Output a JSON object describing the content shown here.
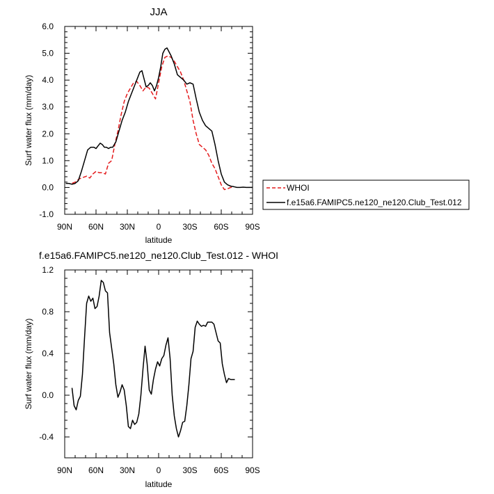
{
  "chart_data": [
    {
      "type": "line",
      "title": "JJA",
      "xlabel": "latitude",
      "ylabel": "Surf water flux (mm/day)",
      "xlim": [
        90,
        -90
      ],
      "ylim": [
        -1.0,
        6.0
      ],
      "x_ticks": [
        90,
        60,
        30,
        0,
        -30,
        -60,
        -90
      ],
      "x_tick_labels": [
        "90N",
        "60N",
        "30N",
        "0",
        "30S",
        "60S",
        "90S"
      ],
      "y_ticks": [
        -1.0,
        0.0,
        1.0,
        2.0,
        3.0,
        4.0,
        5.0,
        6.0
      ],
      "y_tick_labels": [
        "-1.0",
        "0.0",
        "1.0",
        "2.0",
        "3.0",
        "4.0",
        "5.0",
        "6.0"
      ],
      "grid": false,
      "legend_position": "right-outside",
      "series": [
        {
          "name": "WHOI",
          "color": "#e41a1c",
          "dash": "dashed",
          "x": [
            83,
            80,
            76,
            72,
            69,
            66,
            63,
            60,
            57,
            54,
            51,
            48,
            45,
            42,
            39,
            36,
            33,
            30,
            27,
            24,
            21,
            18,
            15,
            12,
            9,
            6,
            3,
            0,
            -3,
            -6,
            -9,
            -12,
            -15,
            -18,
            -21,
            -24,
            -27,
            -30,
            -33,
            -36,
            -39,
            -42,
            -45,
            -48,
            -51,
            -54,
            -57,
            -60,
            -63,
            -66,
            -69,
            -72
          ],
          "y": [
            0.15,
            0.2,
            0.32,
            0.38,
            0.42,
            0.35,
            0.5,
            0.6,
            0.55,
            0.55,
            0.5,
            0.9,
            1.0,
            1.6,
            2.1,
            2.7,
            3.2,
            3.5,
            3.7,
            3.9,
            3.95,
            3.8,
            3.6,
            3.75,
            3.7,
            3.5,
            3.3,
            3.9,
            4.5,
            4.85,
            4.9,
            4.85,
            4.7,
            4.5,
            4.3,
            4.0,
            3.6,
            3.2,
            2.5,
            2.0,
            1.6,
            1.5,
            1.4,
            1.2,
            0.9,
            0.7,
            0.4,
            0.1,
            -0.08,
            -0.05,
            0.0,
            0.0
          ]
        },
        {
          "name": "f.e15a6.FAMIPC5.ne120_ne120.Club_Test.012",
          "color": "#000000",
          "dash": "solid",
          "x": [
            89,
            86,
            83,
            80,
            77,
            74,
            71,
            68,
            65,
            62,
            60,
            58,
            56,
            54,
            52,
            50,
            48,
            46,
            44,
            41,
            38,
            35,
            32,
            29,
            26,
            23,
            20,
            18,
            16,
            14,
            12,
            10,
            8,
            6,
            4,
            2,
            0,
            -2,
            -4,
            -6,
            -8,
            -10,
            -12,
            -15,
            -18,
            -21,
            -24,
            -27,
            -30,
            -33,
            -36,
            -39,
            -42,
            -45,
            -48,
            -51,
            -54,
            -57,
            -60,
            -63,
            -66,
            -69,
            -72,
            -75,
            -78,
            -81,
            -84,
            -87,
            -90
          ],
          "y": [
            0.15,
            0.15,
            0.12,
            0.15,
            0.25,
            0.6,
            1.0,
            1.4,
            1.5,
            1.5,
            1.45,
            1.55,
            1.65,
            1.6,
            1.5,
            1.5,
            1.45,
            1.5,
            1.5,
            1.7,
            2.1,
            2.5,
            2.8,
            3.2,
            3.5,
            3.8,
            4.1,
            4.3,
            4.35,
            4.05,
            3.75,
            3.8,
            3.9,
            3.8,
            3.6,
            3.8,
            4.1,
            4.5,
            5.0,
            5.15,
            5.2,
            5.05,
            4.9,
            4.6,
            4.2,
            4.1,
            4.0,
            3.85,
            3.9,
            3.85,
            3.3,
            2.8,
            2.5,
            2.3,
            2.2,
            2.1,
            1.6,
            1.0,
            0.5,
            0.2,
            0.1,
            0.05,
            0.03,
            0.0,
            0.0,
            0.01,
            0.0,
            0.0,
            0.0
          ]
        }
      ]
    },
    {
      "type": "line",
      "title": "f.e15a6.FAMIPC5.ne120_ne120.Club_Test.012 - WHOI",
      "xlabel": "latitude",
      "ylabel": "Surf water flux (mm/day)",
      "xlim": [
        90,
        -90
      ],
      "ylim": [
        -0.6,
        1.2
      ],
      "x_ticks": [
        90,
        60,
        30,
        0,
        -30,
        -60,
        -90
      ],
      "x_tick_labels": [
        "90N",
        "60N",
        "30N",
        "0",
        "30S",
        "60S",
        "90S"
      ],
      "y_ticks": [
        -0.4,
        0.0,
        0.4,
        0.8,
        1.2
      ],
      "y_tick_labels": [
        "-0.4",
        "0.0",
        "0.4",
        "0.8",
        "1.2"
      ],
      "grid": false,
      "series": [
        {
          "color": "#000000",
          "dash": "solid",
          "x": [
            83,
            81,
            79,
            77,
            75,
            73,
            71,
            69,
            67,
            65,
            63,
            61,
            59,
            57,
            55,
            53,
            51,
            49,
            47,
            45,
            43,
            41,
            39,
            37,
            35,
            33,
            31,
            29,
            27,
            25,
            23,
            21,
            19,
            17,
            15,
            13,
            11,
            9,
            7,
            5,
            3,
            1,
            -1,
            -3,
            -5,
            -7,
            -9,
            -11,
            -13,
            -15,
            -17,
            -19,
            -21,
            -23,
            -25,
            -27,
            -29,
            -31,
            -33,
            -35,
            -37,
            -39,
            -41,
            -43,
            -45,
            -47,
            -49,
            -51,
            -53,
            -55,
            -57,
            -59,
            -61,
            -63,
            -65,
            -67,
            -69,
            -71,
            -73
          ],
          "y": [
            0.07,
            -0.1,
            -0.14,
            -0.05,
            -0.01,
            0.2,
            0.55,
            0.88,
            0.95,
            0.9,
            0.93,
            0.83,
            0.85,
            0.95,
            1.1,
            1.08,
            1.0,
            0.98,
            0.6,
            0.45,
            0.3,
            0.1,
            -0.02,
            0.03,
            0.1,
            0.05,
            -0.1,
            -0.3,
            -0.32,
            -0.24,
            -0.28,
            -0.26,
            -0.18,
            0.0,
            0.25,
            0.47,
            0.3,
            0.05,
            0.01,
            0.15,
            0.25,
            0.32,
            0.28,
            0.35,
            0.38,
            0.48,
            0.55,
            0.35,
            0.0,
            -0.2,
            -0.32,
            -0.4,
            -0.34,
            -0.26,
            -0.25,
            -0.1,
            0.1,
            0.35,
            0.42,
            0.65,
            0.71,
            0.68,
            0.66,
            0.67,
            0.66,
            0.7,
            0.7,
            0.7,
            0.68,
            0.6,
            0.52,
            0.5,
            0.3,
            0.2,
            0.12,
            0.16,
            0.15,
            0.15,
            0.15
          ]
        }
      ]
    }
  ]
}
